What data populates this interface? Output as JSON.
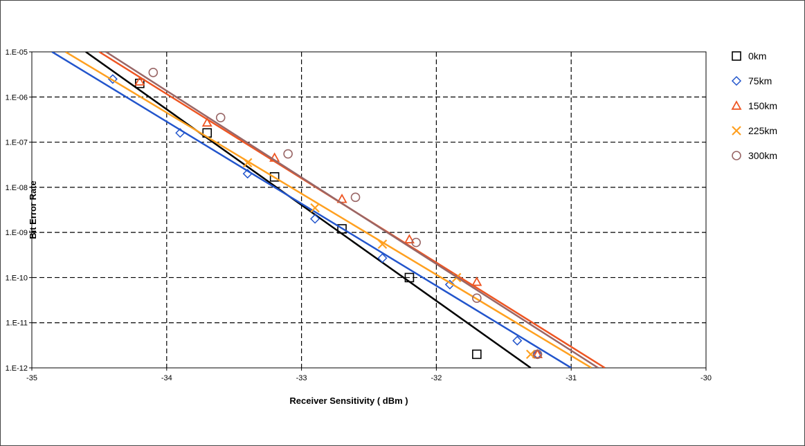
{
  "chart_data": {
    "type": "scatter",
    "title": "",
    "xlabel": "Receiver Sensitivity  ( dBm )",
    "ylabel": "Bit Error Rate",
    "xlim": [
      -35,
      -30
    ],
    "ylim": [
      1e-12,
      1e-05
    ],
    "yscale": "log",
    "grid": true,
    "legend_position": "right",
    "x_ticks": [
      "-35",
      "-34",
      "-33",
      "-32",
      "-31",
      "-30"
    ],
    "x_tick_values": [
      -35,
      -34,
      -33,
      -32,
      -31,
      -30
    ],
    "y_ticks": [
      "1.E-12",
      "1.E-11",
      "1.E-10",
      "1.E-09",
      "1.E-08",
      "1.E-07",
      "1.E-06",
      "1.E-05"
    ],
    "y_tick_values": [
      1e-12,
      1e-11,
      1e-10,
      1e-09,
      1e-08,
      1e-07,
      1e-06,
      1e-05
    ],
    "series": [
      {
        "name": "0km",
        "marker": "square",
        "color": "#000000",
        "marker_color": "#000000",
        "points": [
          [
            -34.2,
            2e-06
          ],
          [
            -33.7,
            1.6e-07
          ],
          [
            -33.2,
            1.7e-08
          ],
          [
            -32.7,
            1.2e-09
          ],
          [
            -32.2,
            1e-10
          ],
          [
            -31.7,
            2e-12
          ]
        ],
        "fit": [
          [
            -34.6,
            1e-05
          ],
          [
            -31.3,
            1e-12
          ]
        ]
      },
      {
        "name": "75km",
        "marker": "diamond",
        "color": "#2255cc",
        "marker_color": "#2255cc",
        "points": [
          [
            -34.4,
            2.5e-06
          ],
          [
            -33.9,
            1.6e-07
          ],
          [
            -33.4,
            2e-08
          ],
          [
            -32.9,
            2e-09
          ],
          [
            -32.4,
            2.7e-10
          ],
          [
            -31.9,
            7e-11
          ],
          [
            -31.4,
            4e-12
          ],
          [
            -31.25,
            2e-12
          ]
        ],
        "fit": [
          [
            -34.85,
            1e-05
          ],
          [
            -31.0,
            1e-12
          ]
        ]
      },
      {
        "name": "150km",
        "marker": "triangle",
        "color": "#ee5522",
        "marker_color": "#ee5522",
        "points": [
          [
            -34.2,
            2.2e-06
          ],
          [
            -33.7,
            2.7e-07
          ],
          [
            -33.2,
            4.5e-08
          ],
          [
            -32.7,
            5.5e-09
          ],
          [
            -32.2,
            7e-10
          ],
          [
            -31.7,
            8e-11
          ],
          [
            -31.25,
            2e-12
          ]
        ],
        "fit": [
          [
            -34.5,
            1e-05
          ],
          [
            -30.75,
            1e-12
          ]
        ]
      },
      {
        "name": "225km",
        "marker": "x",
        "color": "#ffa020",
        "marker_color": "#ffa020",
        "points": [
          [
            -33.4,
            3.5e-08
          ],
          [
            -32.9,
            3.5e-09
          ],
          [
            -32.4,
            5.5e-10
          ],
          [
            -31.85,
            1e-10
          ],
          [
            -31.3,
            2e-12
          ]
        ],
        "fit": [
          [
            -34.75,
            1e-05
          ],
          [
            -30.85,
            1e-12
          ]
        ]
      },
      {
        "name": "300km",
        "marker": "circle",
        "color": "#996666",
        "marker_color": "#996666",
        "points": [
          [
            -34.1,
            3.5e-06
          ],
          [
            -33.6,
            3.5e-07
          ],
          [
            -33.1,
            5.5e-08
          ],
          [
            -32.6,
            6e-09
          ],
          [
            -32.15,
            6e-10
          ],
          [
            -31.7,
            3.5e-11
          ],
          [
            -31.25,
            2e-12
          ]
        ],
        "fit": [
          [
            -34.45,
            1e-05
          ],
          [
            -30.8,
            1e-12
          ]
        ]
      }
    ]
  }
}
